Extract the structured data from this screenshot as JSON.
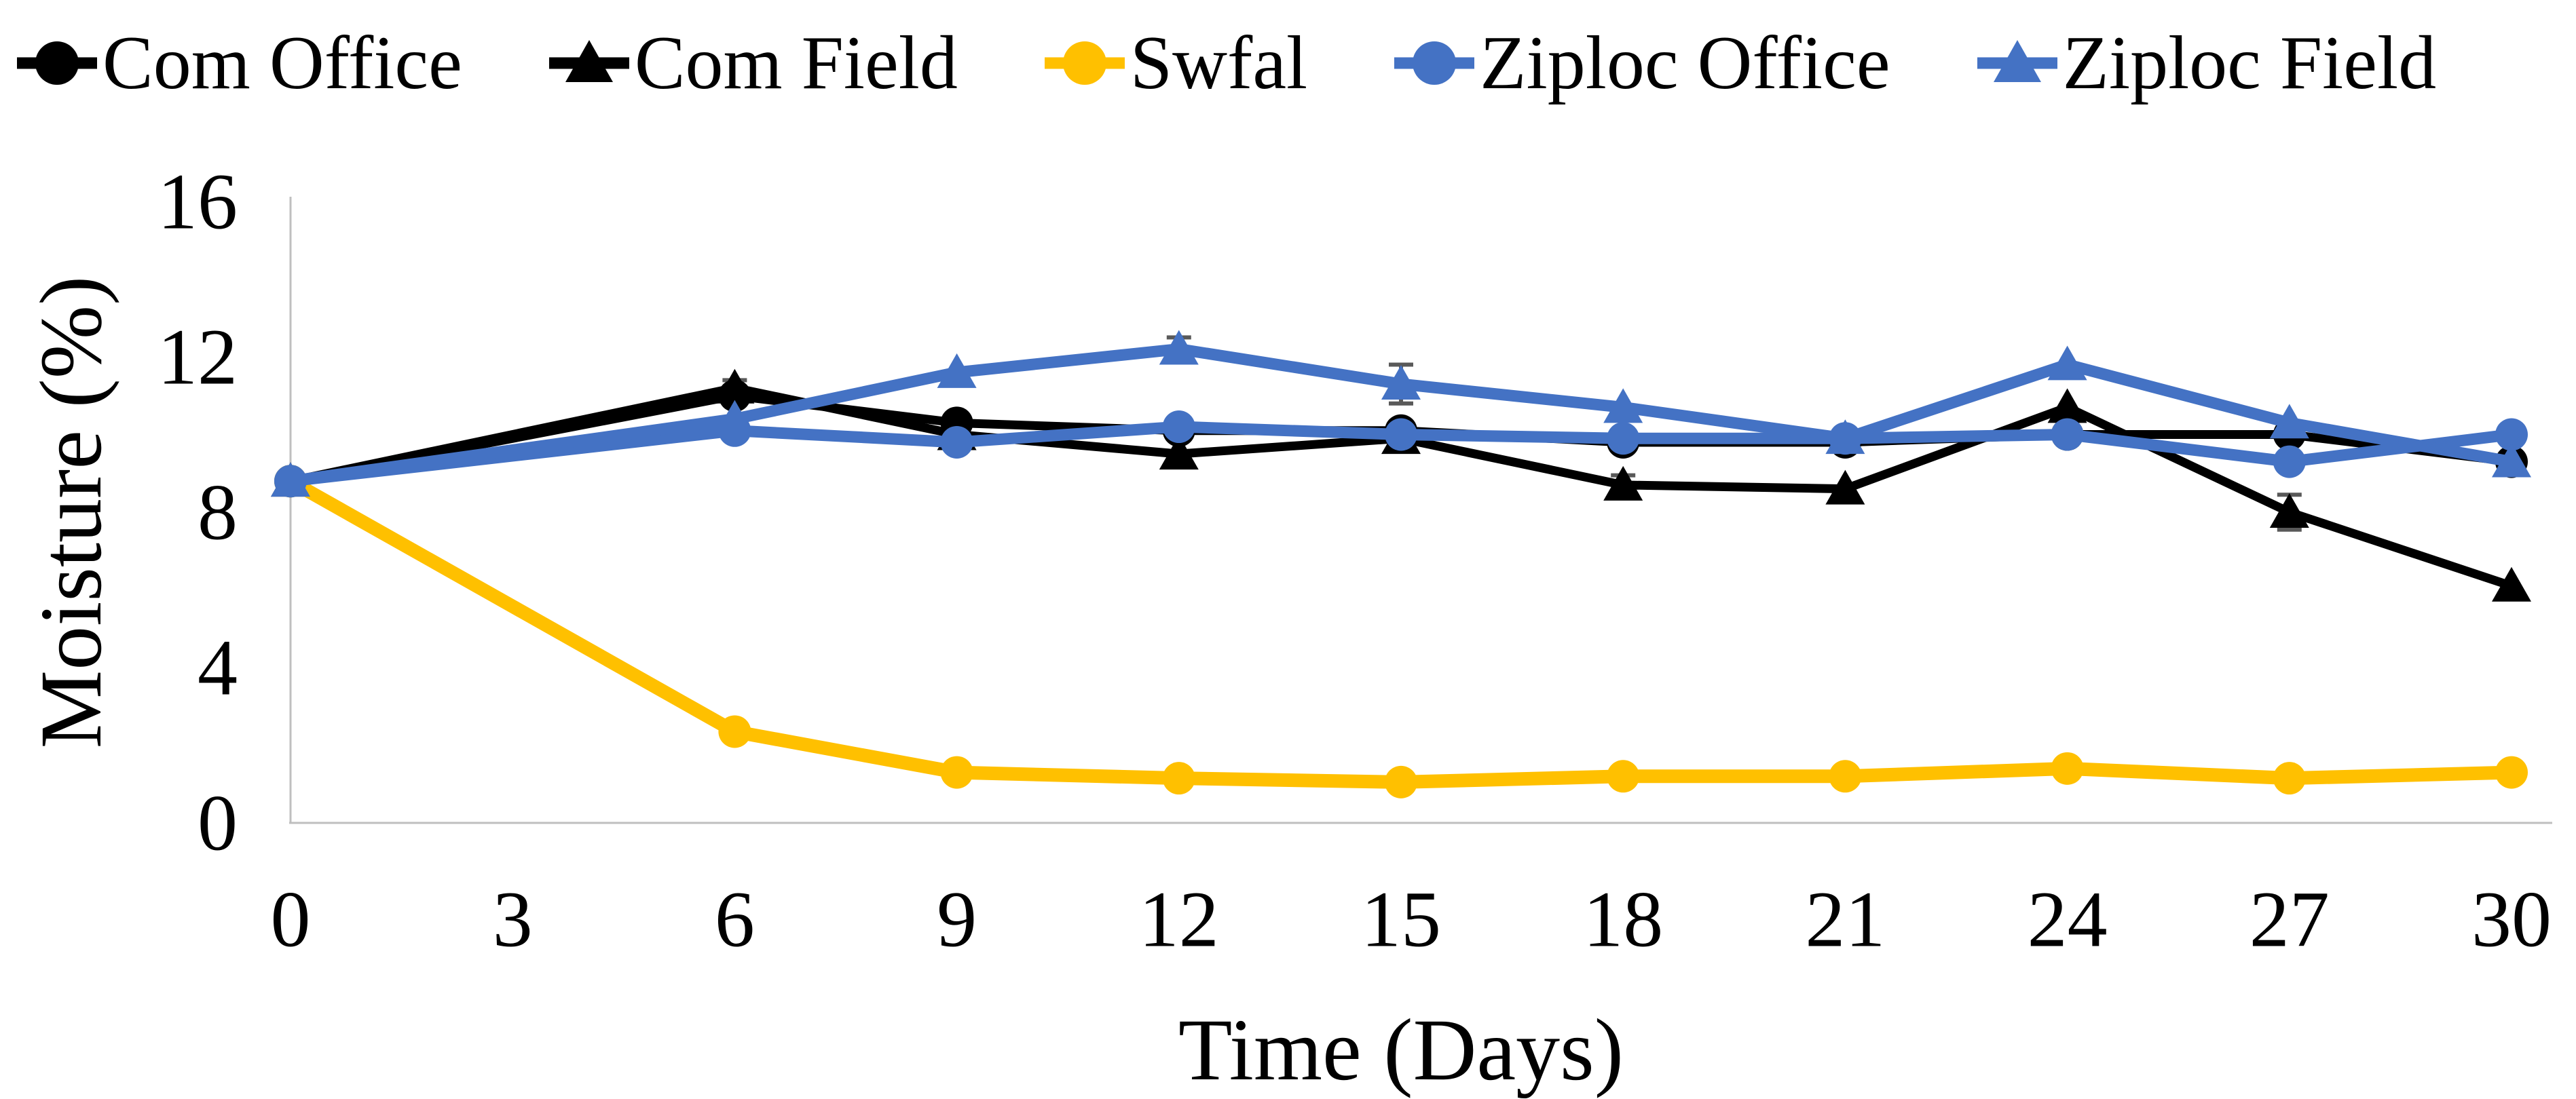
{
  "chart_data": {
    "type": "line",
    "title": "",
    "xlabel": "Time (Days)",
    "ylabel": "Moisture (%)",
    "xlim": [
      0,
      30
    ],
    "ylim": [
      0,
      16
    ],
    "x_tick_labels": [
      0,
      3,
      6,
      9,
      12,
      15,
      18,
      21,
      24,
      27,
      30
    ],
    "y_tick_labels": [
      0,
      4,
      8,
      12,
      16
    ],
    "grid": false,
    "legend_position": "top",
    "axis_color": "#BFBFBF",
    "error_bar_color": "#595959",
    "x": [
      0,
      6,
      9,
      12,
      15,
      18,
      21,
      24,
      27,
      30
    ],
    "series": [
      {
        "name": "Com Office",
        "color": "#000000",
        "marker": "circle",
        "line_width": 13,
        "values": [
          8.8,
          11.0,
          10.3,
          10.1,
          10.1,
          9.8,
          9.8,
          10.0,
          10.0,
          9.3
        ]
      },
      {
        "name": "Com Field",
        "color": "#000000",
        "marker": "triangle",
        "line_width": 13,
        "values": [
          8.8,
          11.2,
          10.0,
          9.5,
          9.9,
          8.7,
          8.6,
          10.7,
          8.0,
          6.1
        ],
        "error_bars": {
          "6": 0.2,
          "18": 0.25,
          "27": 0.45
        }
      },
      {
        "name": "Swfal",
        "color": "#FFC000",
        "marker": "circle",
        "line_width": 20,
        "values": [
          8.8,
          2.35,
          1.3,
          1.15,
          1.05,
          1.2,
          1.2,
          1.4,
          1.15,
          1.3
        ]
      },
      {
        "name": "Ziploc Office",
        "color": "#4472C4",
        "marker": "circle",
        "line_width": 17,
        "values": [
          8.8,
          10.1,
          9.8,
          10.2,
          10.0,
          9.9,
          9.9,
          10.0,
          9.3,
          10.0
        ]
      },
      {
        "name": "Ziploc Field",
        "color": "#4472C4",
        "marker": "triangle",
        "line_width": 17,
        "values": [
          8.8,
          10.4,
          11.6,
          12.2,
          11.3,
          10.7,
          9.9,
          11.8,
          10.3,
          9.3
        ],
        "error_bars": {
          "12": 0.3,
          "15": 0.5
        }
      }
    ]
  }
}
